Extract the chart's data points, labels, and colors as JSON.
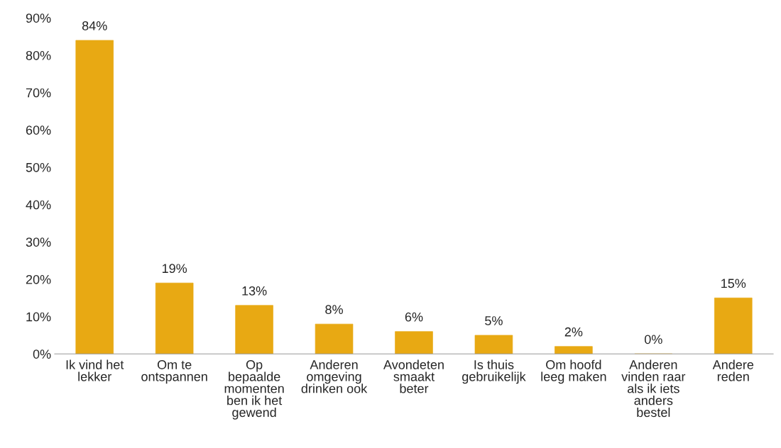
{
  "chart_data": {
    "type": "bar",
    "categories": [
      "Ik vind het\nlekker",
      "Om te\nontspannen",
      "Op\nbepaalde\nmomenten\nben ik het\ngewend",
      "Anderen\nomgeving\ndrinken ook",
      "Avondeten\nsmaakt\nbeter",
      "Is thuis\ngebruikelijk",
      "Om hoofd\nleeg maken",
      "Anderen\nvinden raar\nals ik iets\nanders\nbestel",
      "Andere\nreden"
    ],
    "values": [
      84,
      19,
      13,
      8,
      6,
      5,
      2,
      0,
      15
    ],
    "value_labels": [
      "84%",
      "19%",
      "13%",
      "8%",
      "6%",
      "5%",
      "2%",
      "0%",
      "15%"
    ],
    "color": "#e8a913",
    "ylim": [
      0,
      90
    ],
    "yticks": [
      {
        "value": 0,
        "label": "0%"
      },
      {
        "value": 10,
        "label": "10%"
      },
      {
        "value": 20,
        "label": "20%"
      },
      {
        "value": 30,
        "label": "30%"
      },
      {
        "value": 40,
        "label": "40%"
      },
      {
        "value": 50,
        "label": "50%"
      },
      {
        "value": 60,
        "label": "60%"
      },
      {
        "value": 70,
        "label": "70%"
      },
      {
        "value": 80,
        "label": "80%"
      },
      {
        "value": 90,
        "label": "90%"
      }
    ],
    "grid": false
  }
}
